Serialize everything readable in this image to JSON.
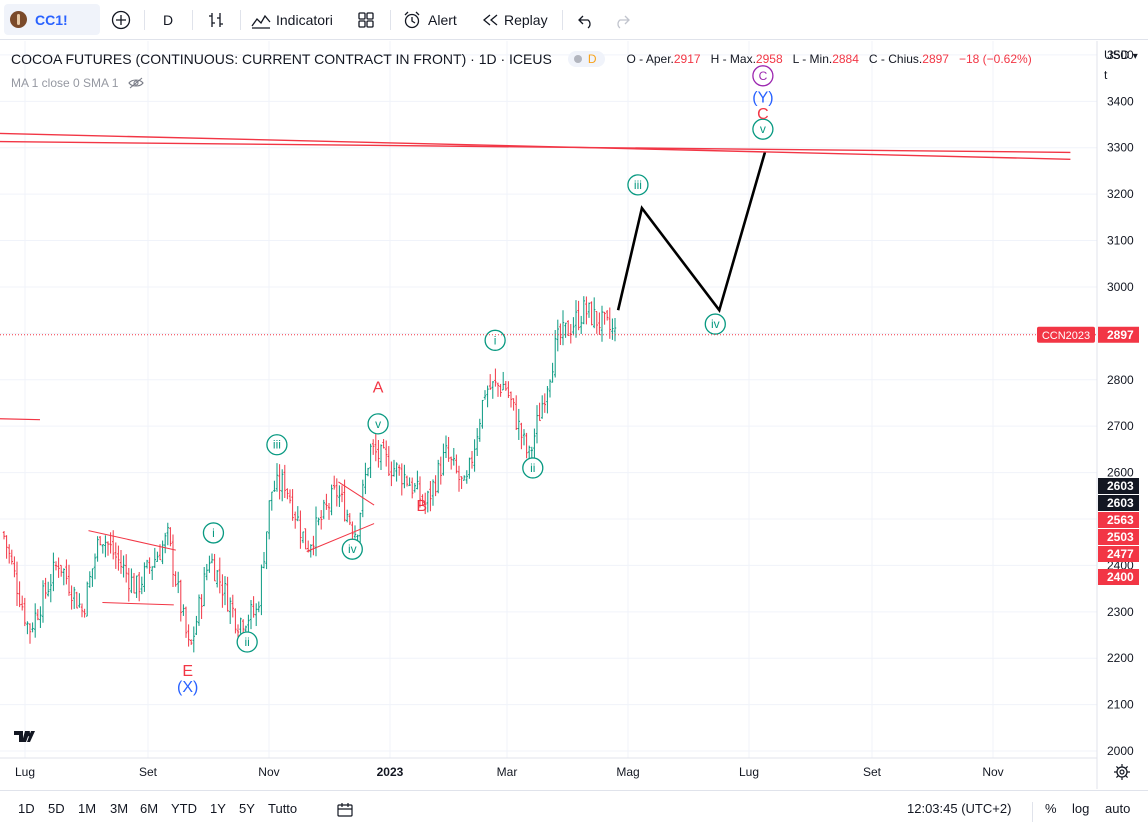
{
  "toolbar": {
    "symbol": "CC1!",
    "interval": "D",
    "indicators_label": "Indicatori",
    "alert_label": "Alert",
    "replay_label": "Replay"
  },
  "legend": {
    "title": "COCOA FUTURES (CONTINUOUS: CURRENT CONTRACT IN FRONT) · 1D · ICEUS",
    "interval_badge": "D",
    "o_label": "O - Aper.",
    "o_value": "2917",
    "h_label": "H - Max.",
    "h_value": "2958",
    "l_label": "L - Min.",
    "l_value": "2884",
    "c_label": "C - Chius.",
    "c_value": "2897",
    "change": "−18 (−0.62%)",
    "ma_label": "MA 1 close 0 SMA 1"
  },
  "scale": {
    "currency": "USD",
    "unit": "t"
  },
  "chart_data": {
    "type": "candlestick",
    "title": "COCOA FUTURES (CONTINUOUS: CURRENT CONTRACT IN FRONT) · 1D · ICEUS",
    "y_ticks": [
      2000,
      2100,
      2200,
      2300,
      2400,
      2500,
      2600,
      2700,
      2800,
      2900,
      3000,
      3100,
      3200,
      3300,
      3400,
      3500
    ],
    "ylim": [
      1985,
      3530
    ],
    "x_ticks": [
      "Lug",
      "Set",
      "Nov",
      "2023",
      "Mar",
      "Mag",
      "Lug",
      "Set",
      "Nov"
    ],
    "price_path": [
      {
        "x": "2022-06-20",
        "y": 2470
      },
      {
        "x": "2022-07-03",
        "y": 2260
      },
      {
        "x": "2022-07-18",
        "y": 2410
      },
      {
        "x": "2022-07-30",
        "y": 2300
      },
      {
        "x": "2022-08-08",
        "y": 2470
      },
      {
        "x": "2022-08-26",
        "y": 2350
      },
      {
        "x": "2022-09-11",
        "y": 2460
      },
      {
        "x": "2022-09-22",
        "y": 2210
      },
      {
        "x": "2022-10-02",
        "y": 2420
      },
      {
        "x": "2022-10-16",
        "y": 2280
      },
      {
        "x": "2022-10-26",
        "y": 2300
      },
      {
        "x": "2022-11-02",
        "y": 2560
      },
      {
        "x": "2022-11-09",
        "y": 2580
      },
      {
        "x": "2022-11-20",
        "y": 2440
      },
      {
        "x": "2022-12-05",
        "y": 2560
      },
      {
        "x": "2022-12-15",
        "y": 2470
      },
      {
        "x": "2022-12-22",
        "y": 2650
      },
      {
        "x": "2023-01-09",
        "y": 2590
      },
      {
        "x": "2023-01-19",
        "y": 2530
      },
      {
        "x": "2023-01-29",
        "y": 2640
      },
      {
        "x": "2023-02-08",
        "y": 2560
      },
      {
        "x": "2023-02-18",
        "y": 2780
      },
      {
        "x": "2023-02-28",
        "y": 2790
      },
      {
        "x": "2023-03-12",
        "y": 2630
      },
      {
        "x": "2023-03-26",
        "y": 2880
      },
      {
        "x": "2023-04-09",
        "y": 2950
      },
      {
        "x": "2023-04-25",
        "y": 2897
      }
    ],
    "series": [
      {
        "type": "projection",
        "points": [
          {
            "x": "2023-04-26",
            "y": 2950
          },
          {
            "x": "2023-05-08",
            "y": 3170
          },
          {
            "x": "2023-06-16",
            "y": 2950
          },
          {
            "x": "2023-07-09",
            "y": 3290
          }
        ]
      },
      {
        "type": "trendline",
        "points": [
          {
            "x": "2022-05-09",
            "y": 3335
          },
          {
            "x": "2023-12-10",
            "y": 3275
          }
        ]
      },
      {
        "type": "trendline",
        "points": [
          {
            "x": "2022-05-09",
            "y": 3315
          },
          {
            "x": "2023-12-10",
            "y": 3290
          }
        ]
      }
    ],
    "wave_labels": [
      {
        "text": "E",
        "x": "2022-09-21",
        "y": 2175,
        "color": "#f23645"
      },
      {
        "text": "(X)",
        "x": "2022-09-21",
        "y": 2140,
        "color": "#2962ff"
      },
      {
        "text": "i",
        "x": "2022-10-04",
        "y": 2470,
        "circled": true,
        "color": "#089981"
      },
      {
        "text": "ii",
        "x": "2022-10-21",
        "y": 2235,
        "circled": true,
        "color": "#089981"
      },
      {
        "text": "iii",
        "x": "2022-11-05",
        "y": 2660,
        "circled": true,
        "color": "#089981"
      },
      {
        "text": "iv",
        "x": "2022-12-13",
        "y": 2435,
        "circled": true,
        "color": "#089981"
      },
      {
        "text": "v",
        "x": "2022-12-26",
        "y": 2705,
        "circled": true,
        "color": "#089981"
      },
      {
        "text": "A",
        "x": "2022-12-26",
        "y": 2785,
        "color": "#f23645"
      },
      {
        "text": "B",
        "x": "2023-01-17",
        "y": 2530,
        "color": "#f23645"
      },
      {
        "text": "i",
        "x": "2023-02-23",
        "y": 2885,
        "circled": true,
        "color": "#089981"
      },
      {
        "text": "ii",
        "x": "2023-03-14",
        "y": 2610,
        "circled": true,
        "color": "#089981"
      },
      {
        "text": "iii",
        "x": "2023-05-06",
        "y": 3220,
        "circled": true,
        "color": "#089981"
      },
      {
        "text": "iv",
        "x": "2023-06-14",
        "y": 2920,
        "circled": true,
        "color": "#089981"
      },
      {
        "text": "v",
        "x": "2023-07-08",
        "y": 3340,
        "circled": true,
        "color": "#089981"
      },
      {
        "text": "C",
        "x": "2023-07-08",
        "y": 3375,
        "color": "#f23645"
      },
      {
        "text": "(Y)",
        "x": "2023-07-08",
        "y": 3410,
        "color": "#2962ff"
      },
      {
        "text": "C",
        "x": "2023-07-08",
        "y": 3455,
        "circled": true,
        "color": "#9c27b0"
      }
    ],
    "price_tags": [
      {
        "label": "CCN2023",
        "value": "2897",
        "color": "#f23645"
      },
      {
        "value": "2603",
        "color": "#131722"
      },
      {
        "value": "2603",
        "color": "#131722"
      },
      {
        "value": "2563",
        "color": "#f23645"
      },
      {
        "value": "2503",
        "color": "#f23645"
      },
      {
        "value": "2477",
        "color": "#f23645"
      },
      {
        "value": "2400",
        "color": "#f23645"
      }
    ]
  },
  "bottom": {
    "ranges": [
      "1D",
      "5D",
      "1M",
      "3M",
      "6M",
      "YTD",
      "1Y",
      "5Y",
      "Tutto"
    ],
    "clock": "12:03:45 (UTC+2)",
    "percent": "%",
    "log": "log",
    "auto": "auto"
  },
  "colors": {
    "up": "#089981",
    "down": "#f23645",
    "text": "#131722",
    "grid": "#f0f3fa",
    "accent": "#2962ff"
  }
}
